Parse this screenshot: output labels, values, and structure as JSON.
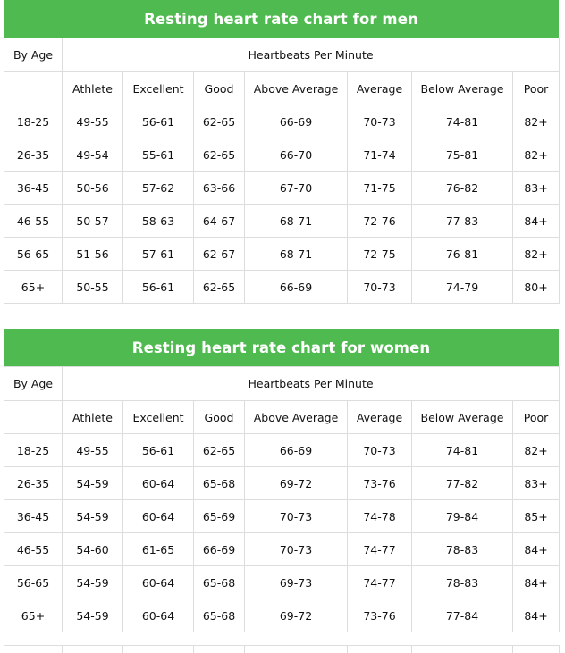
{
  "charts": [
    {
      "title": "Resting heart rate chart for men",
      "age_header": "By Age",
      "group_header": "Heartbeats Per Minute",
      "columns": [
        "Athlete",
        "Excellent",
        "Good",
        "Above Average",
        "Average",
        "Below Average",
        "Poor"
      ],
      "rows": [
        {
          "age": "18-25",
          "values": [
            "49-55",
            "56-61",
            "62-65",
            "66-69",
            "70-73",
            "74-81",
            "82+"
          ]
        },
        {
          "age": "26-35",
          "values": [
            "49-54",
            "55-61",
            "62-65",
            "66-70",
            "71-74",
            "75-81",
            "82+"
          ]
        },
        {
          "age": "36-45",
          "values": [
            "50-56",
            "57-62",
            "63-66",
            "67-70",
            "71-75",
            "76-82",
            "83+"
          ]
        },
        {
          "age": "46-55",
          "values": [
            "50-57",
            "58-63",
            "64-67",
            "68-71",
            "72-76",
            "77-83",
            "84+"
          ]
        },
        {
          "age": "56-65",
          "values": [
            "51-56",
            "57-61",
            "62-67",
            "68-71",
            "72-75",
            "76-81",
            "82+"
          ]
        },
        {
          "age": "65+",
          "values": [
            "50-55",
            "56-61",
            "62-65",
            "66-69",
            "70-73",
            "74-79",
            "80+"
          ]
        }
      ]
    },
    {
      "title": "Resting heart rate chart for women",
      "age_header": "By Age",
      "group_header": "Heartbeats Per Minute",
      "columns": [
        "Athlete",
        "Excellent",
        "Good",
        "Above Average",
        "Average",
        "Below Average",
        "Poor"
      ],
      "rows": [
        {
          "age": "18-25",
          "values": [
            "49-55",
            "56-61",
            "62-65",
            "66-69",
            "70-73",
            "74-81",
            "82+"
          ]
        },
        {
          "age": "26-35",
          "values": [
            "54-59",
            "60-64",
            "65-68",
            "69-72",
            "73-76",
            "77-82",
            "83+"
          ]
        },
        {
          "age": "36-45",
          "values": [
            "54-59",
            "60-64",
            "65-69",
            "70-73",
            "74-78",
            "79-84",
            "85+"
          ]
        },
        {
          "age": "46-55",
          "values": [
            "54-60",
            "61-65",
            "66-69",
            "70-73",
            "74-77",
            "78-83",
            "84+"
          ]
        },
        {
          "age": "56-65",
          "values": [
            "54-59",
            "60-64",
            "65-68",
            "69-73",
            "74-77",
            "78-83",
            "84+"
          ]
        },
        {
          "age": "65+",
          "values": [
            "54-59",
            "60-64",
            "65-68",
            "69-72",
            "73-76",
            "77-84",
            "84+"
          ]
        }
      ]
    }
  ],
  "colors": {
    "header_green": "#4fba4f",
    "border": "#dddddd"
  }
}
